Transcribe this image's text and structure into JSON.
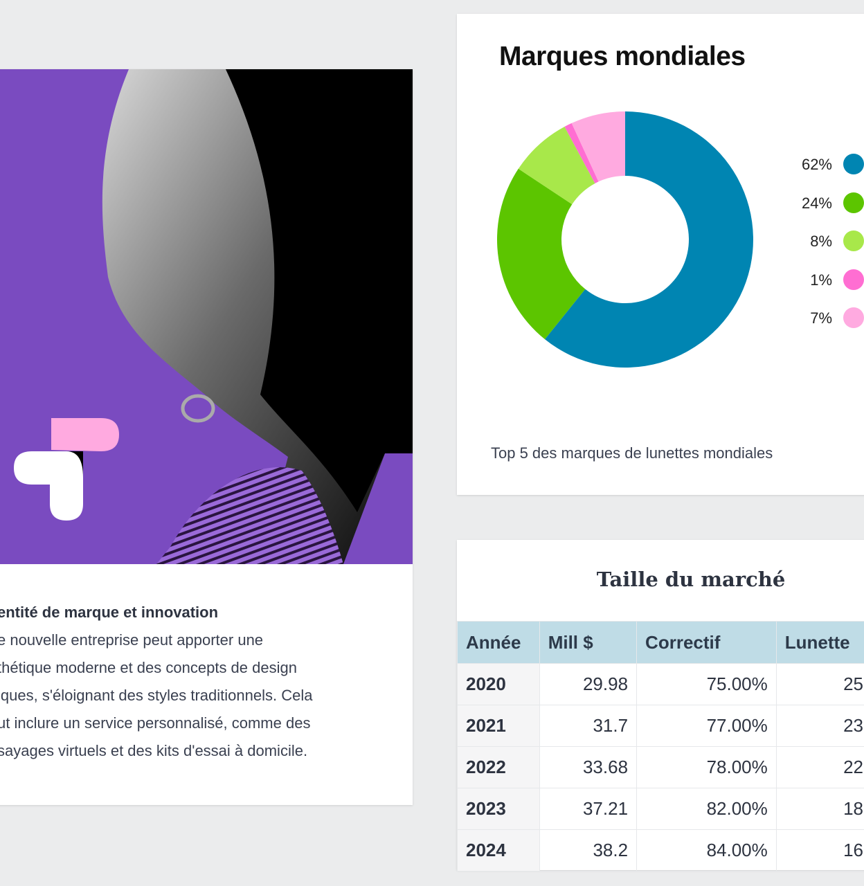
{
  "article": {
    "heading": "entité de marque et innovation",
    "lines": [
      "e nouvelle entreprise peut apporter une",
      "thétique moderne et des concepts de design",
      "iques, s'éloignant des styles traditionnels. Cela",
      "ut inclure un service personnalisé, comme des",
      "sayages virtuels et des kits d'essai à domicile."
    ]
  },
  "chart_data": {
    "type": "pie",
    "title": "Marques mondiales",
    "caption": "Top 5 des marques de lunettes mondiales",
    "values": [
      62,
      24,
      8,
      1,
      7
    ],
    "labels": [
      "62%",
      "24%",
      "8%",
      "1%",
      "7%"
    ],
    "colors": [
      "#0085b2",
      "#5cc500",
      "#a8e84a",
      "#ff6ed2",
      "#ffaae0"
    ],
    "donut": true,
    "legend_placement": "right"
  },
  "table": {
    "title": "Taille du marché",
    "headers": [
      "Année",
      "Mill $",
      "Correctif",
      "Lunette"
    ],
    "rows": [
      [
        "2020",
        "29.98",
        "75.00%",
        "25"
      ],
      [
        "2021",
        "31.7",
        "77.00%",
        "23"
      ],
      [
        "2022",
        "33.68",
        "78.00%",
        "22"
      ],
      [
        "2023",
        "37.21",
        "82.00%",
        "18"
      ],
      [
        "2024",
        "38.2",
        "84.00%",
        "16"
      ]
    ]
  },
  "colors": {
    "photo_background": "#7a4bc0",
    "logo_pink": "#ffaae0",
    "header_bg": "#bfdce6"
  }
}
